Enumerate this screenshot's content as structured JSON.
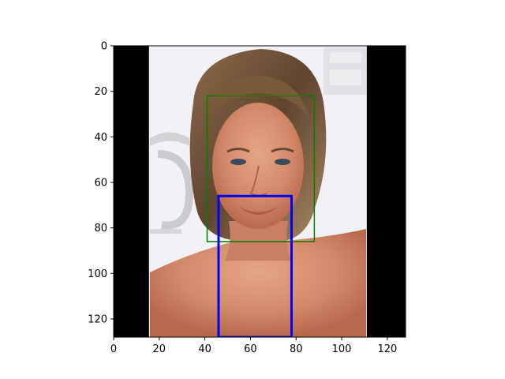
{
  "chart_data": {
    "type": "image",
    "title": "",
    "xlabel": "",
    "ylabel": "",
    "xlim": [
      0,
      128
    ],
    "ylim": [
      128,
      0
    ],
    "x_ticks": [
      0,
      20,
      40,
      60,
      80,
      100,
      120
    ],
    "y_ticks": [
      0,
      20,
      40,
      60,
      80,
      100,
      120
    ],
    "x_tick_labels": [
      "0",
      "20",
      "40",
      "60",
      "80",
      "100",
      "120"
    ],
    "y_tick_labels": [
      "0",
      "20",
      "40",
      "60",
      "80",
      "100",
      "120"
    ],
    "grid": false,
    "image_content": {
      "left_black_border": [
        0,
        15.5
      ],
      "right_black_border": [
        111,
        128
      ],
      "photo_region": [
        15.5,
        111
      ]
    },
    "boxes": [
      {
        "x0": 41,
        "y0": 22,
        "x1": 88,
        "y1": 86,
        "color": "#008000"
      },
      {
        "x0": 46,
        "y0": 66,
        "x1": 78,
        "y1": 128,
        "color": "#0000ff"
      }
    ],
    "colors": {
      "border_black": "#000000",
      "background_light": "#f2f2f6",
      "skin": "#d48a6a",
      "hair": "#7a5a3c",
      "box_green": "#008000",
      "box_blue": "#0000ff"
    }
  }
}
